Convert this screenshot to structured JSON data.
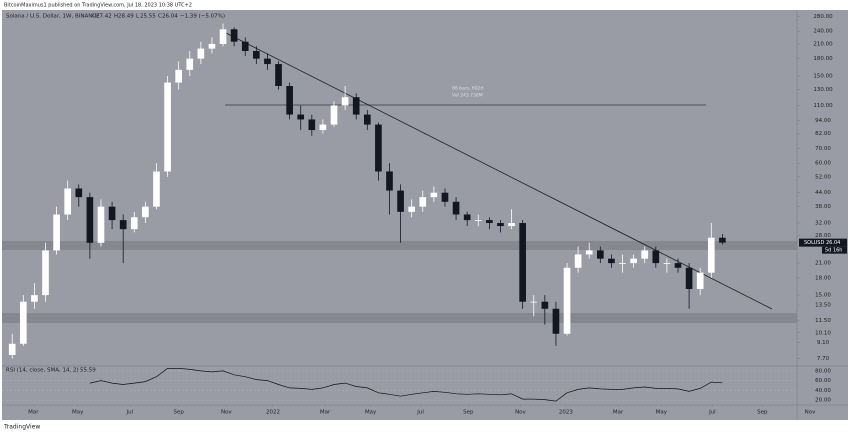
{
  "header": {
    "published": "BitcoinMaximus1 published on TradingView.com, Jul 18, 2023 10:38 UTC+2"
  },
  "footer": {
    "brand": "TradingView"
  },
  "chart_data": [
    {
      "type": "candlestick",
      "title": "Solana / U.S. Dollar, 1W, BINANCE",
      "ohlc": [
        {
          "label": "O",
          "value": 27.42
        },
        {
          "label": "H",
          "value": 28.49
        },
        {
          "label": "L",
          "value": 25.55
        },
        {
          "label": "C",
          "value": 26.04
        }
      ],
      "change": "−1.39 (−5.07%)",
      "symbol": "SOLUSD",
      "last_price": 26.04,
      "countdown": "5d 16h",
      "annotations": [
        "86 bars, 602d",
        "Vol 245.738M"
      ],
      "log_scale": true,
      "up_color": "#ffffff",
      "down_color": "#131722",
      "open": [
        8,
        9,
        14,
        15,
        24,
        35,
        46,
        42,
        26,
        38,
        33,
        30,
        34,
        38,
        55,
        140,
        160,
        180,
        200,
        210,
        245,
        215,
        195,
        180,
        170,
        135,
        100,
        95,
        85,
        90,
        110,
        120,
        100,
        90,
        55,
        45,
        36,
        38,
        42,
        44,
        40,
        35,
        33,
        33,
        32,
        31,
        32,
        14,
        14,
        13,
        10,
        20,
        23,
        24,
        22,
        21,
        21,
        22,
        24,
        21,
        21,
        20,
        16,
        19,
        27.42
      ],
      "high": [
        10,
        15,
        17,
        26,
        38,
        50,
        48,
        44,
        41,
        40,
        35,
        36,
        40,
        60,
        150,
        175,
        195,
        215,
        225,
        260,
        250,
        225,
        205,
        190,
        175,
        140,
        110,
        100,
        95,
        115,
        135,
        125,
        105,
        92,
        60,
        48,
        41,
        45,
        47,
        46,
        42,
        36,
        35,
        34,
        33,
        37,
        33,
        15,
        15,
        14,
        21,
        25,
        26,
        25,
        23,
        23,
        23,
        25,
        25,
        22,
        22,
        21,
        20,
        32,
        28.49
      ],
      "low": [
        7.7,
        8.8,
        13,
        14,
        23,
        33,
        38,
        22,
        25,
        30,
        21,
        29,
        32,
        37,
        52,
        130,
        150,
        170,
        190,
        205,
        205,
        185,
        170,
        160,
        130,
        95,
        85,
        80,
        82,
        88,
        105,
        95,
        85,
        50,
        35,
        26,
        34,
        36,
        40,
        38,
        33,
        31,
        31,
        30,
        29,
        30,
        13,
        12,
        11,
        8.8,
        9.8,
        19,
        22,
        21,
        20,
        19,
        20,
        21,
        20,
        19,
        19,
        13,
        15,
        18,
        25.55
      ],
      "close": [
        9,
        14,
        15,
        24,
        35,
        46,
        42,
        26,
        38,
        33,
        30,
        34,
        38,
        55,
        140,
        160,
        180,
        200,
        210,
        245,
        215,
        195,
        180,
        170,
        135,
        100,
        95,
        85,
        90,
        110,
        120,
        100,
        90,
        55,
        45,
        36,
        38,
        42,
        44,
        40,
        35,
        33,
        33,
        32,
        31,
        32,
        14,
        14,
        13,
        10,
        20,
        23,
        24,
        22,
        21,
        21,
        22,
        24,
        21,
        21,
        20,
        16,
        19,
        27.42,
        26.04
      ],
      "xlim": [
        -1.1,
        75.5
      ],
      "xticks": [
        {
          "value": 1.9,
          "label": "Mar"
        },
        {
          "value": 5.9,
          "label": "May"
        },
        {
          "value": 10.6,
          "label": "Jul"
        },
        {
          "value": 15,
          "label": "Sep"
        },
        {
          "value": 19.3,
          "label": "Nov"
        },
        {
          "value": 23.5,
          "label": "2022"
        },
        {
          "value": 28.2,
          "label": "Mar"
        },
        {
          "value": 32.3,
          "label": "May"
        },
        {
          "value": 36.8,
          "label": "Jul"
        },
        {
          "value": 41.1,
          "label": "Sep"
        },
        {
          "value": 45.8,
          "label": "Nov"
        },
        {
          "value": 49.9,
          "label": "2023"
        },
        {
          "value": 54.6,
          "label": "Mar"
        },
        {
          "value": 58.5,
          "label": "May"
        },
        {
          "value": 63.1,
          "label": "Jul"
        },
        {
          "value": 67.6,
          "label": "Sep"
        },
        {
          "value": 71.9,
          "label": "Nov"
        }
      ],
      "ylim": [
        7.2,
        300
      ],
      "yticks": [
        {
          "value": 280,
          "label": "280.00"
        },
        {
          "value": 240,
          "label": "240.00"
        },
        {
          "value": 210,
          "label": "210.00"
        },
        {
          "value": 180,
          "label": "180.00"
        },
        {
          "value": 150,
          "label": "150.00"
        },
        {
          "value": 130,
          "label": "130.00"
        },
        {
          "value": 110,
          "label": "110.00"
        },
        {
          "value": 94,
          "label": "94.00"
        },
        {
          "value": 82,
          "label": "82.00"
        },
        {
          "value": 70,
          "label": "70.00"
        },
        {
          "value": 60,
          "label": "60.00"
        },
        {
          "value": 52,
          "label": "52.00"
        },
        {
          "value": 44,
          "label": "44.00"
        },
        {
          "value": 38,
          "label": "38.00"
        },
        {
          "value": 32,
          "label": "32.00"
        },
        {
          "value": 28,
          "label": "28.00"
        },
        {
          "value": 21,
          "label": "21.00"
        },
        {
          "value": 18,
          "label": "18.00"
        },
        {
          "value": 15,
          "label": "15.00"
        },
        {
          "value": 13.5,
          "label": "13.50"
        },
        {
          "value": 11.5,
          "label": "11.50"
        },
        {
          "value": 10.1,
          "label": "10.10"
        },
        {
          "value": 9.1,
          "label": "9.10"
        },
        {
          "value": 7.7,
          "label": "7.70"
        }
      ]
    },
    {
      "type": "line",
      "title": "RSI (14, close, SMA, 14, 2)",
      "value": 55.59,
      "series": [
        {
          "color": "#111111",
          "values": [
            null,
            null,
            null,
            null,
            null,
            null,
            null,
            55,
            60,
            55,
            52,
            55,
            58,
            68,
            85,
            85,
            83,
            80,
            78,
            80,
            72,
            68,
            62,
            60,
            52,
            45,
            44,
            42,
            45,
            52,
            55,
            48,
            45,
            35,
            32,
            28,
            32,
            35,
            38,
            36,
            33,
            32,
            33,
            32,
            31,
            33,
            22,
            22,
            21,
            18,
            35,
            42,
            45,
            43,
            42,
            42,
            45,
            47,
            44,
            44,
            43,
            38,
            44,
            57,
            55.59
          ]
        }
      ],
      "ylim": [
        10,
        90
      ],
      "yticks": [
        {
          "value": 80,
          "label": "80.00"
        },
        {
          "value": 60,
          "label": "60.00"
        },
        {
          "value": 40,
          "label": "40.00"
        },
        {
          "value": 20,
          "label": "20.00"
        }
      ]
    }
  ]
}
